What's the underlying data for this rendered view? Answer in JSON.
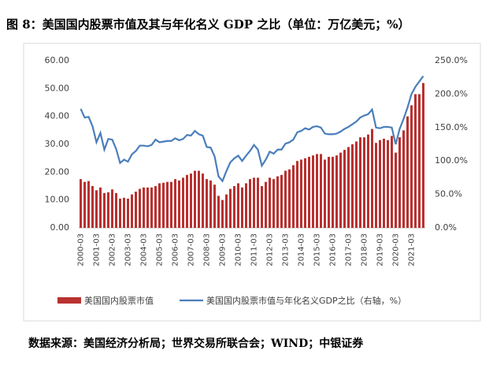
{
  "title": "图 8：美国国内股票市值及其与年化名义 GDP 之比（单位：万亿美元；%）",
  "source": "数据来源：美国经济分析局；世界交易所联合会；WIND；中银证券",
  "chart_data": {
    "type": "bar-line",
    "categories": [
      "2000-03",
      null,
      null,
      null,
      "2001-03",
      null,
      null,
      null,
      "2002-03",
      null,
      null,
      null,
      "2003-03",
      null,
      null,
      null,
      "2004-03",
      null,
      null,
      null,
      "2005-03",
      null,
      null,
      null,
      "2006-03",
      null,
      null,
      null,
      "2007-03",
      null,
      null,
      null,
      "2008-03",
      null,
      null,
      null,
      "2009-03",
      null,
      null,
      null,
      "2010-03",
      null,
      null,
      null,
      "2011-03",
      null,
      null,
      null,
      "2012-03",
      null,
      null,
      null,
      "2013-03",
      null,
      null,
      null,
      "2014-03",
      null,
      null,
      null,
      "2015-03",
      null,
      null,
      null,
      "2016-03",
      null,
      null,
      null,
      "2017-03",
      null,
      null,
      null,
      "2018-03",
      null,
      null,
      null,
      "2019-03",
      null,
      null,
      null,
      "2020-03",
      null,
      null,
      null,
      "2021-03",
      null,
      null,
      null
    ],
    "series": [
      {
        "name": "美国国内股票市值",
        "type": "bar",
        "color": "#b8312f",
        "values": [
          17.5,
          16.5,
          16.8,
          15.0,
          13.5,
          14.5,
          12.5,
          12.8,
          13.8,
          12.5,
          10.5,
          10.8,
          10.5,
          12.0,
          13.0,
          14.0,
          14.5,
          14.5,
          14.5,
          15.0,
          16.0,
          16.2,
          16.5,
          16.5,
          17.5,
          17.0,
          18.0,
          19.0,
          19.5,
          20.5,
          20.5,
          19.5,
          17.5,
          17.0,
          15.5,
          11.5,
          10.0,
          12.0,
          14.0,
          15.0,
          16.0,
          14.5,
          16.0,
          17.5,
          18.0,
          18.0,
          15.0,
          16.5,
          18.0,
          17.5,
          18.5,
          19.0,
          20.5,
          21.0,
          22.5,
          24.0,
          24.5,
          25.0,
          25.5,
          26.0,
          26.5,
          26.5,
          24.5,
          25.5,
          25.5,
          26.0,
          27.0,
          28.0,
          29.0,
          30.0,
          31.0,
          32.5,
          32.5,
          33.5,
          35.5,
          30.5,
          31.5,
          32.0,
          31.5,
          33.0,
          27.0,
          32.5,
          35.0,
          40.0,
          44.0,
          48.0,
          48.0,
          52.0
        ]
      },
      {
        "name": "美国国内股票市值与年化名义GDP之比（右轴，%）",
        "type": "line",
        "axis": "y2",
        "color": "#4a7ebb",
        "values": [
          178,
          165,
          166,
          152,
          128,
          142,
          117,
          133,
          132,
          118,
          97,
          102,
          99,
          110,
          115,
          123,
          123,
          122,
          124,
          132,
          128,
          129,
          130,
          130,
          134,
          131,
          133,
          139,
          138,
          145,
          140,
          138,
          121,
          120,
          107,
          77,
          70,
          85,
          98,
          104,
          108,
          100,
          108,
          115,
          124,
          117,
          93,
          102,
          114,
          111,
          117,
          117,
          126,
          128,
          132,
          143,
          145,
          149,
          147,
          151,
          152,
          150,
          141,
          140,
          140,
          141,
          144,
          148,
          151,
          155,
          159,
          165,
          168,
          170,
          177,
          150,
          149,
          151,
          151,
          150,
          125,
          148,
          163,
          180,
          200,
          211,
          219,
          227
        ]
      }
    ],
    "ylim": [
      0,
      60
    ],
    "yticks": [
      {
        "value": 0,
        "label": "0.00"
      },
      {
        "value": 10,
        "label": "10.00"
      },
      {
        "value": 20,
        "label": "20.00"
      },
      {
        "value": 30,
        "label": "30.00"
      },
      {
        "value": 40,
        "label": "40.00"
      },
      {
        "value": 50,
        "label": "50.00"
      },
      {
        "value": 60,
        "label": "60.00"
      }
    ],
    "y2lim": [
      0,
      250
    ],
    "y2ticks": [
      {
        "value": 0,
        "label": "0.0%"
      },
      {
        "value": 50,
        "label": "50.0%"
      },
      {
        "value": 100,
        "label": "100.0%"
      },
      {
        "value": 150,
        "label": "150.0%"
      },
      {
        "value": 200,
        "label": "200.0%"
      },
      {
        "value": 250,
        "label": "250.0%"
      }
    ]
  }
}
